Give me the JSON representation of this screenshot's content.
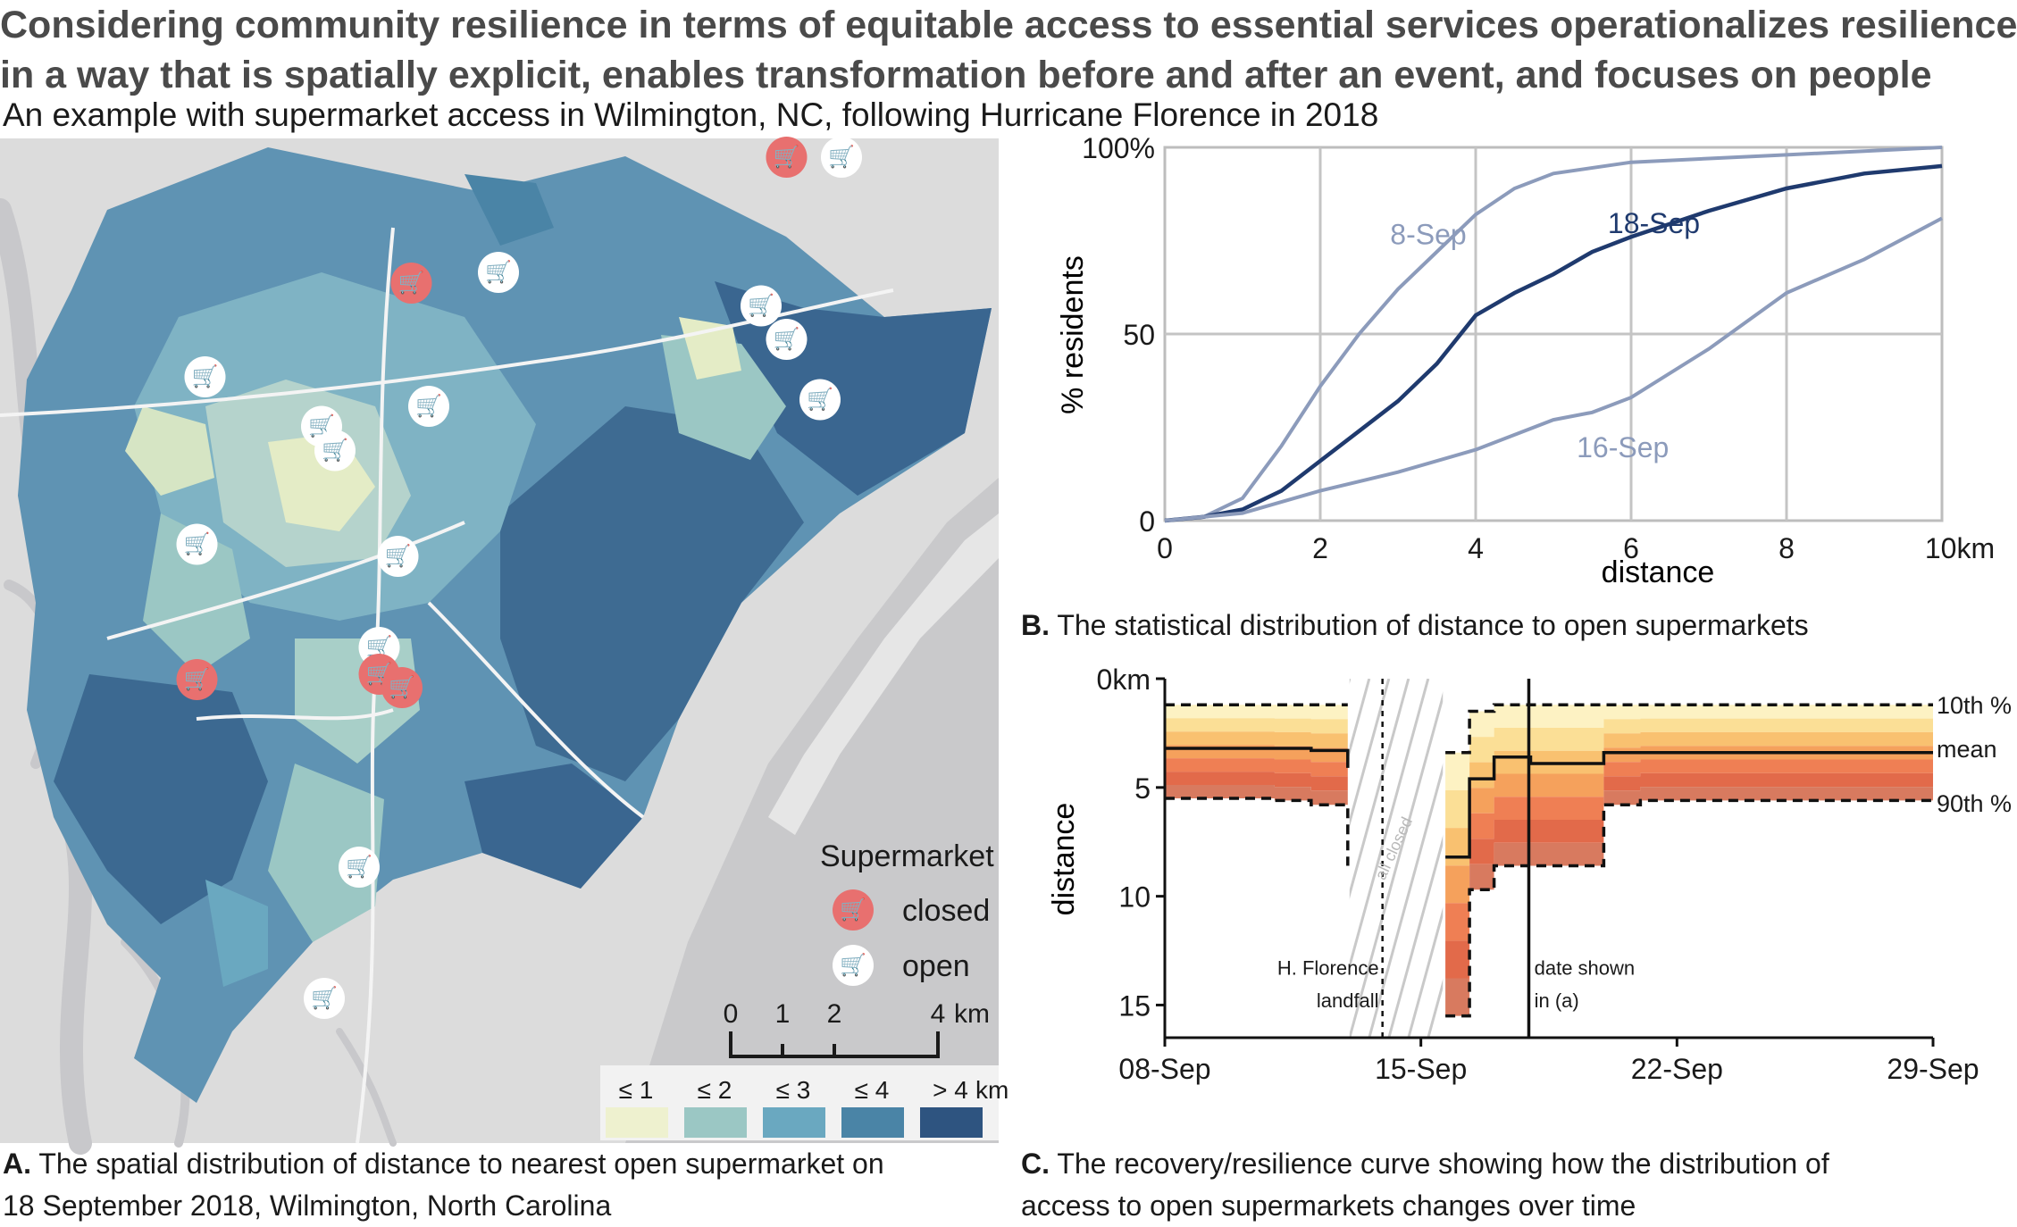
{
  "headline": {
    "line1": "Considering community resilience in terms of equitable access to essential services operationalizes resilience",
    "line2": "in a way that is spatially explicit, enables transformation before and after an event, and focuses on people"
  },
  "subtitle": "An example with supermarket access in Wilmington, NC, following Hurricane Florence in 2018",
  "panels": {
    "a_letter": "A.",
    "a_line1": "The spatial distribution of distance to nearest open supermarket on",
    "a_line2": "18 September 2018, Wilmington, North Carolina",
    "b_letter": "B.",
    "b_text": "The statistical distribution of distance to open supermarkets",
    "c_letter": "C.",
    "c_line1": "The recovery/resilience curve showing how the distribution of",
    "c_line2": "access to open supermarkets changes over time"
  },
  "map": {
    "legend_title": "Supermarket",
    "legend_closed": "closed",
    "legend_open": "open",
    "closed_color": "#e8706f",
    "scale_labels": [
      "0",
      "1",
      "2",
      "4"
    ],
    "scale_unit": "km",
    "class_labels": [
      "≤ 1",
      "≤ 2",
      "≤ 3",
      "≤ 4",
      "> 4"
    ],
    "class_unit": "km",
    "class_colors": [
      "#eef1cf",
      "#9bc7c4",
      "#6aa8c0",
      "#4a84a6",
      "#2e5480"
    ],
    "cart_icon": "shopping-cart-icon"
  },
  "chart_data": [
    {
      "type": "line",
      "xlabel": "distance",
      "ylabel": "% residents",
      "xlim": [
        0,
        10
      ],
      "ylim": [
        0,
        100
      ],
      "x_ticks": [
        "0",
        "2",
        "4",
        "6",
        "8",
        "10km"
      ],
      "y_ticks": [
        "0",
        "50",
        "100%"
      ],
      "grid": true,
      "series": [
        {
          "name": "8-Sep",
          "color": "#8c9bbb",
          "x": [
            0,
            0.5,
            1,
            1.5,
            2,
            2.5,
            3,
            3.5,
            4,
            4.5,
            5,
            6,
            7,
            8,
            9,
            10
          ],
          "y": [
            0,
            1,
            6,
            20,
            36,
            50,
            62,
            72,
            82,
            89,
            93,
            96,
            97,
            98,
            99,
            100
          ]
        },
        {
          "name": "18-Sep",
          "color": "#1f3a6e",
          "x": [
            0,
            0.5,
            1,
            1.5,
            2,
            2.5,
            3,
            3.5,
            4,
            4.5,
            5,
            5.5,
            6,
            7,
            8,
            9,
            10
          ],
          "y": [
            0,
            1,
            3,
            8,
            16,
            24,
            32,
            42,
            55,
            61,
            66,
            72,
            76,
            83,
            89,
            93,
            95
          ]
        },
        {
          "name": "16-Sep",
          "color": "#8c9bbb",
          "x": [
            0,
            0.5,
            1,
            1.5,
            2,
            3,
            4,
            4.5,
            5,
            5.5,
            6,
            7,
            8,
            9,
            10
          ],
          "y": [
            0,
            1,
            2,
            5,
            8,
            13,
            19,
            23,
            27,
            29,
            33,
            46,
            61,
            70,
            81
          ]
        }
      ]
    },
    {
      "type": "area",
      "xlabel": "",
      "ylabel": "distance",
      "x_ticks": [
        "08-Sep",
        "15-Sep",
        "22-Sep",
        "29-Sep"
      ],
      "y_ticks": [
        "0km",
        "5",
        "10",
        "15"
      ],
      "ylim": [
        0,
        16.5
      ],
      "y_inverted": true,
      "legend": [
        "10th %",
        "mean",
        "90th %"
      ],
      "band_colors": [
        "#fdf2c3",
        "#fbdf96",
        "#f9c170",
        "#f5a15c",
        "#ef7f54",
        "#e26a4a",
        "#d87a5f"
      ],
      "x_days": [
        0,
        1,
        2,
        3,
        4,
        5,
        5,
        7.67,
        8.33,
        9,
        9,
        10,
        11,
        12,
        13,
        14,
        15,
        16,
        17,
        18,
        19,
        20,
        21
      ],
      "p10": [
        1.2,
        1.2,
        1.2,
        1.2,
        1.2,
        1.2,
        null,
        3.4,
        1.5,
        1.2,
        1.2,
        1.2,
        1.2,
        1.2,
        1.2,
        1.2,
        1.2,
        1.2,
        1.2,
        1.2,
        1.2,
        1.2,
        1.2
      ],
      "mean": [
        3.2,
        3.2,
        3.2,
        3.2,
        3.3,
        4.1,
        null,
        8.2,
        4.6,
        4.1,
        3.6,
        3.9,
        3.9,
        3.4,
        3.4,
        3.4,
        3.4,
        3.4,
        3.4,
        3.4,
        3.4,
        3.4,
        3.4
      ],
      "p90": [
        5.5,
        5.5,
        5.5,
        5.6,
        5.8,
        8.6,
        null,
        15.5,
        9.7,
        8.6,
        8.6,
        8.6,
        8.6,
        5.8,
        5.6,
        5.6,
        5.6,
        5.6,
        5.6,
        5.6,
        5.6,
        5.6,
        5.5
      ],
      "annotations": {
        "all_closed": "all closed",
        "landfall_line1": "H. Florence",
        "landfall_line2": "landfall",
        "shown_line1": "date shown",
        "shown_line2": "in (a)"
      }
    }
  ]
}
